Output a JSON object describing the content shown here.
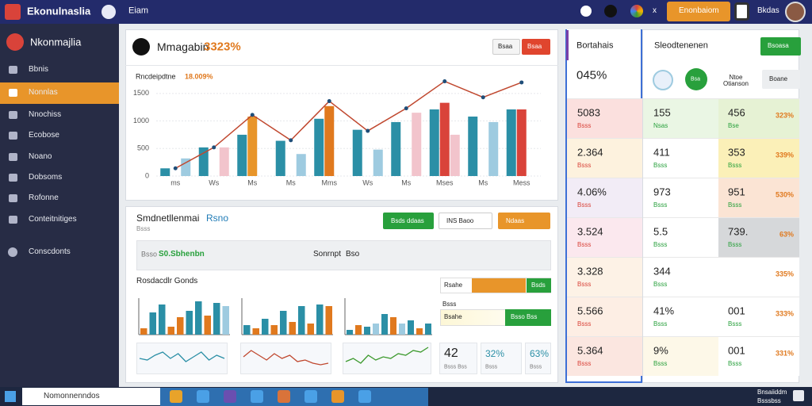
{
  "header": {
    "app_title": "Ekonulnaslia",
    "menu": "Eiam",
    "close": "x",
    "action_button": "Enonbaiom",
    "user": "Bkdas"
  },
  "sidebar": {
    "title": "Nkonmajlia",
    "items": [
      "Bbnis",
      "Nonnlas",
      "Nnochiss",
      "Ecobose",
      "Noano",
      "Dobsoms",
      "Rofonne",
      "Conteitnitiges"
    ],
    "footer_item": "Conscdonts",
    "active_index": 1
  },
  "main_chart": {
    "type": "bar-line",
    "title": "Mmagabin",
    "headline": "3323%",
    "buttons": [
      "Bsaa",
      "Bsaa"
    ],
    "subtitle": "Rncdeipdtne",
    "subtitle_value": "18.009%",
    "categories": [
      "ms",
      "Ws",
      "Ms",
      "Ms",
      "Mms",
      "Ws",
      "Ms",
      "Mses",
      "Ms",
      "Mess"
    ],
    "series": [
      {
        "color": "#2b8fa6",
        "values": [
          140,
          520,
          750,
          640,
          1040,
          840,
          980,
          1210,
          1080,
          1210
        ]
      },
      {
        "color": "#e0791e",
        "colors": [
          null,
          null,
          "#e8952a",
          null,
          "#e0791e",
          null,
          null,
          "#d9433a",
          null,
          "#d9433a"
        ],
        "values": [
          null,
          null,
          1080,
          null,
          1270,
          null,
          null,
          1330,
          null,
          1210
        ]
      },
      {
        "color": "#9ecbe0",
        "colors": [
          "#9ecbe0",
          "#f2c4cc",
          null,
          "#9ecbe0",
          null,
          "#9ecbe0",
          "#f2c4cc",
          "#f2c4cc",
          "#9ecbe0",
          null
        ],
        "values": [
          320,
          520,
          null,
          400,
          null,
          480,
          1150,
          750,
          980,
          null
        ]
      }
    ],
    "line": {
      "color": "#c0482f",
      "values": [
        140,
        520,
        1110,
        650,
        1360,
        820,
        1230,
        1720,
        1430,
        1700
      ]
    },
    "ylim": [
      0,
      1800
    ],
    "yticks": [
      0,
      500,
      1000,
      1500
    ],
    "grid": true
  },
  "panel2": {
    "title": "Smdnetllenmai",
    "title_accent": "Rsno",
    "subtitle": "Bsss",
    "buttons": [
      "Bsds ddaas",
      "INS Baoo",
      "Ndaas"
    ],
    "search_label": "Bsso",
    "search_value": "S0.Sbhenbn",
    "search_label2": "Sonrnpt",
    "search_value2": "Bso",
    "section_title": "Rosdacdlr Gonds",
    "progress": [
      {
        "label": "Rsahe",
        "button": "Bsds"
      },
      {
        "label": "Bsss",
        "sublabel": "Bsahe",
        "button": "Bsso Bss"
      }
    ],
    "mini_bars": [
      {
        "values": [
          8,
          28,
          38,
          10,
          22,
          30,
          42,
          24,
          40,
          36
        ],
        "colors": [
          "#e0791e",
          "#2b8fa6",
          "#2b8fa6",
          "#e0791e",
          "#e0791e",
          "#2b8fa6",
          "#2b8fa6",
          "#e0791e",
          "#2b8fa6",
          "#9ecbe0"
        ]
      },
      {
        "values": [
          12,
          8,
          20,
          12,
          30,
          16,
          36,
          14,
          38,
          36
        ],
        "colors": [
          "#2b8fa6",
          "#e0791e",
          "#2b8fa6",
          "#e0791e",
          "#2b8fa6",
          "#e0791e",
          "#2b8fa6",
          "#e0791e",
          "#2b8fa6",
          "#e0791e"
        ]
      },
      {
        "values": [
          6,
          12,
          10,
          14,
          26,
          22,
          14,
          18,
          8,
          14
        ],
        "colors": [
          "#2b8fa6",
          "#e0791e",
          "#2b8fa6",
          "#9ecbe0",
          "#2b8fa6",
          "#e0791e",
          "#9ecbe0",
          "#2b8fa6",
          "#e0791e",
          "#2b8fa6"
        ]
      }
    ],
    "sparklines": [
      {
        "color": "#2b8fa6",
        "values": [
          14,
          12,
          18,
          22,
          14,
          20,
          10,
          16,
          22,
          12,
          18,
          14
        ]
      },
      {
        "color": "#c0482f",
        "values": [
          16,
          24,
          18,
          12,
          20,
          14,
          18,
          10,
          12,
          8,
          6,
          8
        ]
      },
      {
        "color": "#3d9a2e",
        "values": [
          10,
          14,
          8,
          18,
          12,
          16,
          14,
          20,
          18,
          24,
          22,
          28
        ]
      }
    ],
    "kpis": [
      {
        "value": "42",
        "label": "Bsss Bss"
      },
      {
        "value": "32%",
        "label": "Bsss"
      },
      {
        "value": "63%",
        "label": "Bsss"
      }
    ]
  },
  "table": {
    "headers": [
      "Bortahais",
      "Sleodtenenen"
    ],
    "header_button": "Bsoasa",
    "top_row": {
      "value": "045%",
      "controls": [
        "Bsa",
        "Ntoe Otianson"
      ],
      "button": "Boane"
    },
    "rows": [
      [
        {
          "value": "5083",
          "label": "Bsss"
        },
        {
          "value": "155",
          "label": "Nsas"
        },
        {
          "value": "456",
          "label": "Bse"
        },
        "323%"
      ],
      [
        {
          "value": "2.364",
          "label": "Bsss"
        },
        {
          "value": "411",
          "label": "Bsss"
        },
        {
          "value": "353",
          "label": "Bsss"
        },
        "339%"
      ],
      [
        {
          "value": "4.06%",
          "label": "Bsss"
        },
        {
          "value": "973",
          "label": "Bsss"
        },
        {
          "value": "951",
          "label": "Bsss"
        },
        "530%"
      ],
      [
        {
          "value": "3.524",
          "label": "Bsss"
        },
        {
          "value": "5.5",
          "label": "Bsss"
        },
        {
          "value": "739.",
          "label": "Bsss"
        },
        "63%"
      ],
      [
        {
          "value": "3.328",
          "label": "Bsss"
        },
        {
          "value": "344",
          "label": "Bsss"
        },
        null,
        "335%"
      ],
      [
        {
          "value": "5.566",
          "label": "Bsss"
        },
        {
          "value": "41%",
          "label": "Bsss"
        },
        {
          "value": "001",
          "label": "Bsss"
        },
        "333%"
      ],
      [
        {
          "value": "5.364",
          "label": "Bsss"
        },
        {
          "value": "9%",
          "label": "Bsss"
        },
        {
          "value": "001",
          "label": "Bsss"
        },
        "331%"
      ]
    ]
  },
  "taskbar": {
    "search": "Nomonnenndos",
    "tray_time": "Bnsaiiddm",
    "tray_date": "Bsssbss"
  }
}
